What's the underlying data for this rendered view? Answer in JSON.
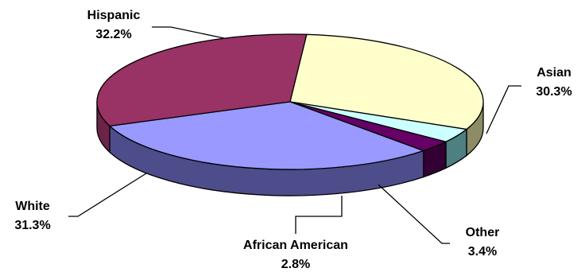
{
  "chart_data": {
    "type": "pie",
    "style": "3d",
    "title": "",
    "slices": [
      {
        "label": "Hispanic",
        "value": 32.2,
        "value_label": "32.2%",
        "color": "#993366",
        "side_color": "#6b2447"
      },
      {
        "label": "Asian",
        "value": 30.3,
        "value_label": "30.3%",
        "color": "#ffffcc",
        "side_color": "#8c8c66"
      },
      {
        "label": "Other",
        "value": 3.4,
        "value_label": "3.4%",
        "color": "#ccffff",
        "side_color": "#4d8080"
      },
      {
        "label": "African American",
        "value": 2.8,
        "value_label": "2.8%",
        "color": "#660066",
        "side_color": "#330033"
      },
      {
        "label": "White",
        "value": 31.3,
        "value_label": "31.3%",
        "color": "#9999ff",
        "side_color": "#4d4d8c"
      }
    ],
    "edge_color": "#000000"
  }
}
